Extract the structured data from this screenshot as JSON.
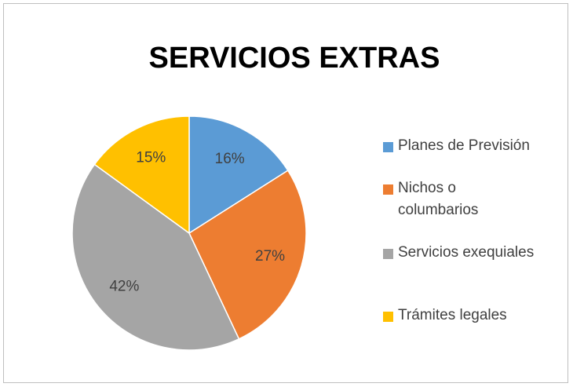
{
  "chart_data": {
    "type": "pie",
    "title": "SERVICIOS EXTRAS",
    "categories": [
      "Planes de Previsión",
      "Nichos o columbarios",
      "Servicios exequiales",
      "Trámites legales"
    ],
    "values": [
      16,
      27,
      42,
      15
    ],
    "value_labels": [
      "16%",
      "27%",
      "42%",
      "15%"
    ],
    "colors": [
      "#5b9bd5",
      "#ed7d31",
      "#a5a5a5",
      "#ffc000"
    ],
    "legend": "right"
  }
}
